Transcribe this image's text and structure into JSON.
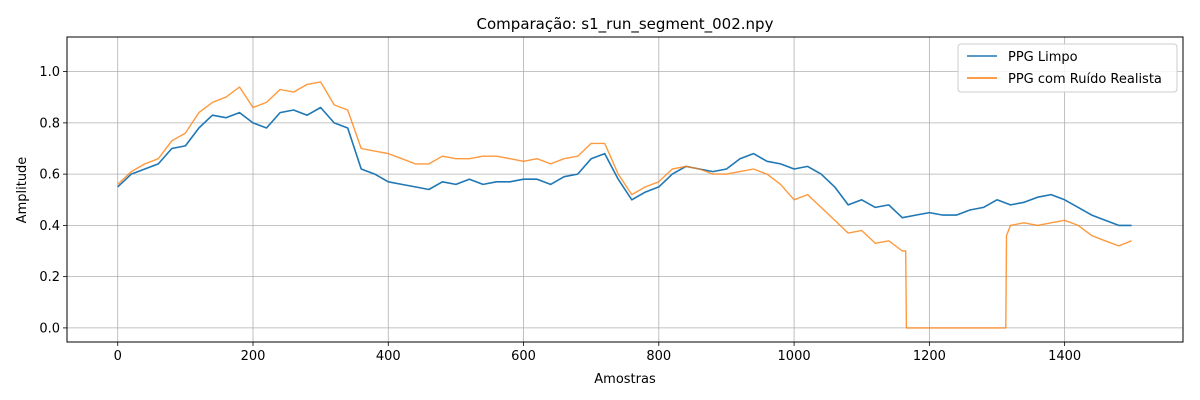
{
  "chart_data": {
    "type": "line",
    "title": "Comparação: s1_run_segment_002.npy",
    "xlabel": "Amostras",
    "ylabel": "Amplitude",
    "xlim": [
      -75,
      1575
    ],
    "ylim": [
      -0.055,
      1.135
    ],
    "xticks": [
      0,
      200,
      400,
      600,
      800,
      1000,
      1200,
      1400
    ],
    "yticks": [
      0.0,
      0.2,
      0.4,
      0.6,
      0.8,
      1.0
    ],
    "xtick_labels": [
      "0",
      "200",
      "400",
      "600",
      "800",
      "1000",
      "1200",
      "1400"
    ],
    "ytick_labels": [
      "0.0",
      "0.2",
      "0.4",
      "0.6",
      "0.8",
      "1.0"
    ],
    "grid": true,
    "legend_position": "upper right",
    "series": [
      {
        "name": "PPG Limpo",
        "color": "#1f77b4",
        "x": [
          0,
          20,
          40,
          60,
          80,
          100,
          120,
          140,
          160,
          180,
          200,
          220,
          240,
          260,
          280,
          300,
          320,
          340,
          360,
          380,
          400,
          420,
          440,
          460,
          480,
          500,
          520,
          540,
          560,
          580,
          600,
          620,
          640,
          660,
          680,
          700,
          720,
          740,
          760,
          780,
          800,
          820,
          840,
          860,
          880,
          900,
          920,
          940,
          960,
          980,
          1000,
          1020,
          1040,
          1060,
          1080,
          1100,
          1120,
          1140,
          1160,
          1180,
          1200,
          1220,
          1240,
          1260,
          1280,
          1300,
          1320,
          1340,
          1360,
          1380,
          1400,
          1420,
          1440,
          1460,
          1480,
          1499
        ],
        "y": [
          0.55,
          0.6,
          0.62,
          0.64,
          0.7,
          0.71,
          0.78,
          0.83,
          0.82,
          0.84,
          0.8,
          0.78,
          0.84,
          0.85,
          0.83,
          0.86,
          0.8,
          0.78,
          0.62,
          0.6,
          0.57,
          0.56,
          0.55,
          0.54,
          0.57,
          0.56,
          0.58,
          0.56,
          0.57,
          0.57,
          0.58,
          0.58,
          0.56,
          0.59,
          0.6,
          0.66,
          0.68,
          0.58,
          0.5,
          0.53,
          0.55,
          0.6,
          0.63,
          0.62,
          0.61,
          0.62,
          0.66,
          0.68,
          0.65,
          0.64,
          0.62,
          0.63,
          0.6,
          0.55,
          0.48,
          0.5,
          0.47,
          0.48,
          0.43,
          0.44,
          0.45,
          0.44,
          0.44,
          0.46,
          0.47,
          0.5,
          0.48,
          0.49,
          0.51,
          0.52,
          0.5,
          0.47,
          0.44,
          0.42,
          0.4,
          0.4
        ]
      },
      {
        "name": "PPG com Ruído Realista",
        "color": "#ff7f0e",
        "x": [
          0,
          20,
          40,
          60,
          80,
          100,
          120,
          140,
          160,
          180,
          200,
          220,
          240,
          260,
          280,
          300,
          320,
          340,
          360,
          380,
          400,
          420,
          440,
          460,
          480,
          500,
          520,
          540,
          560,
          580,
          600,
          620,
          640,
          660,
          680,
          700,
          720,
          740,
          760,
          780,
          800,
          820,
          840,
          860,
          880,
          900,
          920,
          940,
          960,
          980,
          1000,
          1020,
          1040,
          1060,
          1080,
          1100,
          1120,
          1140,
          1160,
          1165,
          1166,
          1200,
          1250,
          1300,
          1313,
          1314,
          1320,
          1340,
          1360,
          1380,
          1400,
          1420,
          1440,
          1460,
          1480,
          1499
        ],
        "y": [
          0.56,
          0.61,
          0.64,
          0.66,
          0.73,
          0.76,
          0.84,
          0.88,
          0.9,
          0.94,
          0.86,
          0.88,
          0.93,
          0.92,
          0.95,
          0.96,
          0.87,
          0.85,
          0.7,
          0.69,
          0.68,
          0.66,
          0.64,
          0.64,
          0.67,
          0.66,
          0.66,
          0.67,
          0.67,
          0.66,
          0.65,
          0.66,
          0.64,
          0.66,
          0.67,
          0.72,
          0.72,
          0.6,
          0.52,
          0.55,
          0.57,
          0.62,
          0.63,
          0.62,
          0.6,
          0.6,
          0.61,
          0.62,
          0.6,
          0.56,
          0.5,
          0.52,
          0.47,
          0.42,
          0.37,
          0.38,
          0.33,
          0.34,
          0.3,
          0.3,
          0.0,
          0.0,
          0.0,
          0.0,
          0.0,
          0.36,
          0.4,
          0.41,
          0.4,
          0.41,
          0.42,
          0.4,
          0.36,
          0.34,
          0.32,
          0.34
        ]
      }
    ]
  }
}
